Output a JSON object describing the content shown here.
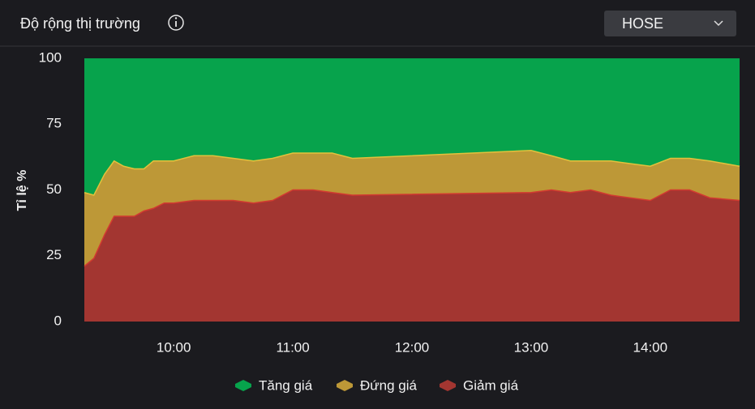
{
  "header": {
    "title": "Độ rộng thị trường",
    "exchange": "HOSE"
  },
  "chart_data": {
    "type": "stacked_area",
    "y_label": "Tỉ lệ %",
    "x": [
      9.25,
      9.33,
      9.42,
      9.5,
      9.58,
      9.67,
      9.75,
      9.83,
      9.92,
      10,
      10.17,
      10.33,
      10.5,
      10.67,
      10.83,
      11,
      11.17,
      11.33,
      11.5,
      13,
      13.17,
      13.33,
      13.5,
      13.67,
      13.83,
      14,
      14.17,
      14.33,
      14.5,
      14.75
    ],
    "series": [
      {
        "name": "Tăng giá",
        "color": "#07a34c",
        "values": [
          51,
          52,
          44,
          39,
          41,
          42,
          42,
          39,
          39,
          39,
          37,
          37,
          38,
          39,
          38,
          36,
          36,
          36,
          38,
          35,
          37,
          39,
          39,
          39,
          40,
          41,
          38,
          38,
          39,
          41
        ]
      },
      {
        "name": "Đứng giá",
        "color": "#bd9837",
        "values": [
          28,
          24,
          23,
          21,
          19,
          18,
          16,
          18,
          16,
          16,
          17,
          17,
          16,
          16,
          16,
          14,
          14,
          15,
          14,
          16,
          13,
          12,
          11,
          13,
          13,
          13,
          12,
          12,
          14,
          13
        ]
      },
      {
        "name": "Giảm giá",
        "color": "#a33631",
        "values": [
          21,
          24,
          33,
          40,
          40,
          40,
          42,
          43,
          45,
          45,
          46,
          46,
          46,
          45,
          46,
          50,
          50,
          49,
          48,
          49,
          50,
          49,
          50,
          48,
          47,
          46,
          50,
          50,
          47,
          46
        ]
      }
    ],
    "xlim": [
      9.25,
      14.75
    ],
    "xticks": [
      {
        "value": 10,
        "label": "10:00"
      },
      {
        "value": 11,
        "label": "11:00"
      },
      {
        "value": 12,
        "label": "12:00"
      },
      {
        "value": 13,
        "label": "13:00"
      },
      {
        "value": 14,
        "label": "14:00"
      }
    ],
    "ylim": [
      0,
      100
    ],
    "yticks": [
      0,
      25,
      50,
      75,
      100
    ],
    "grid": false
  }
}
